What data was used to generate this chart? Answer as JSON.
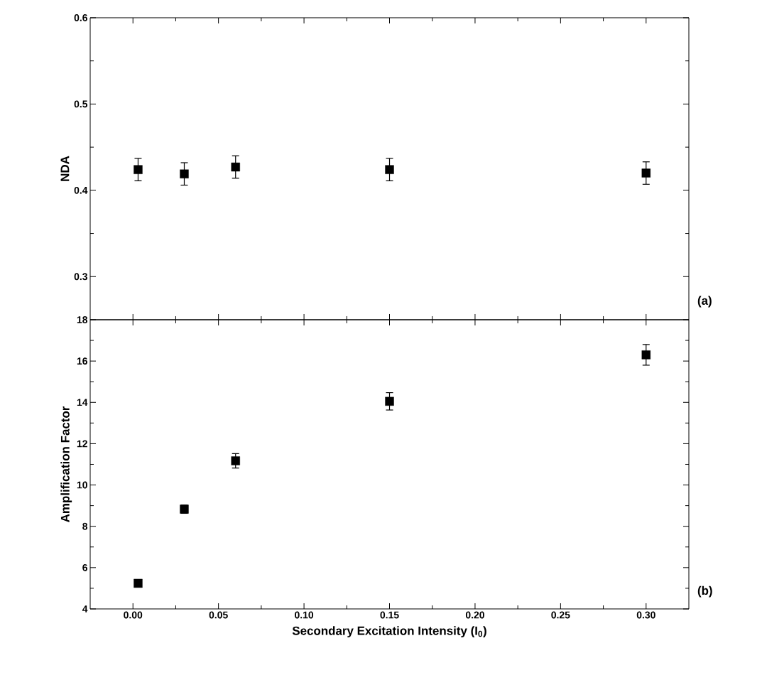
{
  "chart_data": [
    {
      "type": "scatter",
      "ylabel": "NDA",
      "annotations": [
        "(a)"
      ],
      "marker": "square",
      "tick_labels": "y",
      "x": [
        0.003,
        0.03,
        0.06,
        0.15,
        0.3
      ],
      "series": [
        {
          "color": "#000000",
          "values": [
            0.424,
            0.419,
            0.427,
            0.424,
            0.42
          ],
          "errors": [
            0.013,
            0.013,
            0.013,
            0.013,
            0.013
          ]
        }
      ],
      "xlim": [
        -0.025,
        0.325
      ],
      "xticks": [
        {
          "value": 0,
          "label": null
        },
        {
          "value": 0.05,
          "label": null
        },
        {
          "value": 0.1,
          "label": null
        },
        {
          "value": 0.15,
          "label": null
        },
        {
          "value": 0.2,
          "label": null
        },
        {
          "value": 0.25,
          "label": null
        },
        {
          "value": 0.3,
          "label": null
        }
      ],
      "ylim": [
        0.25,
        0.6
      ],
      "yticks": [
        0.3,
        0.4,
        0.5,
        0.6
      ]
    },
    {
      "type": "scatter",
      "xlabel": "Secondary Excitation Intensity (I$_{0}$)",
      "ylabel": "Amplification Factor",
      "annotations": [
        "(b)"
      ],
      "marker": "square",
      "x": [
        0.003,
        0.03,
        0.06,
        0.15,
        0.3
      ],
      "series": [
        {
          "color": "#000000",
          "values": [
            5.24,
            8.83,
            11.17,
            14.05,
            16.3
          ],
          "errors": [
            null,
            0.2,
            0.35,
            0.42,
            0.5
          ]
        }
      ],
      "xlim": [
        -0.025,
        0.325
      ],
      "xticks": [
        {
          "value": 0,
          "label": "0.00"
        },
        {
          "value": 0.05,
          "label": "0.05"
        },
        {
          "value": 0.1,
          "label": "0.10"
        },
        {
          "value": 0.15,
          "label": "0.15"
        },
        {
          "value": 0.2,
          "label": "0.20"
        },
        {
          "value": 0.25,
          "label": "0.25"
        },
        {
          "value": 0.3,
          "label": "0.30"
        }
      ],
      "ylim": [
        4,
        18
      ],
      "yticks": [
        4,
        6,
        8,
        10,
        12,
        14,
        16,
        18
      ]
    }
  ]
}
